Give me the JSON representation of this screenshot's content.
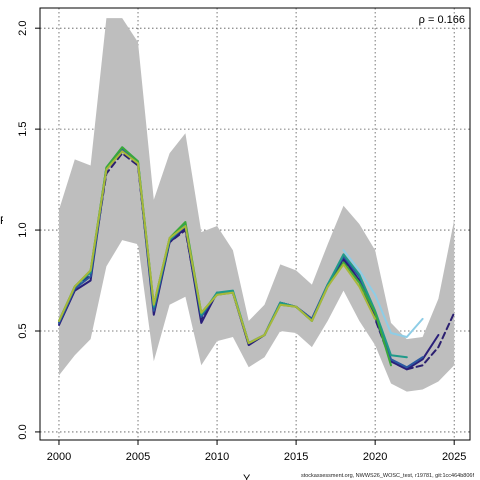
{
  "annotation": "ρ = 0.166",
  "footer": "stockassessment.org, NWWS26_WOSC_test, r19781, git:1cc464b806f",
  "xlabel": "Y",
  "ylabel": "F",
  "chart_data": {
    "type": "line",
    "xlim": [
      1998.8,
      2026.0
    ],
    "ylim": [
      -0.04,
      2.1
    ],
    "x_ticks": [
      2000,
      2005,
      2010,
      2015,
      2020,
      2025
    ],
    "y_ticks": [
      0.0,
      0.5,
      1.0,
      1.5,
      2.0
    ],
    "x_tick_labels": [
      "2000",
      "2005",
      "2010",
      "2015",
      "2020",
      "2025"
    ],
    "y_tick_labels": [
      "0.0",
      "0.5",
      "1.0",
      "1.5",
      "2.0"
    ],
    "grid": true,
    "band_color": "#bebebe",
    "confidence_band": {
      "x": [
        2000,
        2001,
        2002,
        2003,
        2004,
        2005,
        2006,
        2007,
        2008,
        2009,
        2010,
        2011,
        2012,
        2013,
        2014,
        2015,
        2016,
        2017,
        2018,
        2019,
        2020,
        2021,
        2022,
        2023,
        2024,
        2025
      ],
      "lower": [
        0.28,
        0.38,
        0.46,
        0.82,
        0.95,
        0.93,
        0.35,
        0.63,
        0.67,
        0.33,
        0.45,
        0.47,
        0.32,
        0.37,
        0.5,
        0.49,
        0.42,
        0.55,
        0.7,
        0.55,
        0.43,
        0.24,
        0.2,
        0.21,
        0.25,
        0.33
      ],
      "upper": [
        1.1,
        1.35,
        1.32,
        2.05,
        2.05,
        1.93,
        1.15,
        1.38,
        1.48,
        0.99,
        1.02,
        0.9,
        0.55,
        0.63,
        0.83,
        0.8,
        0.73,
        0.93,
        1.12,
        1.03,
        0.9,
        0.54,
        0.46,
        0.47,
        0.66,
        1.05
      ]
    },
    "series": [
      {
        "color": "#2b1f70",
        "dashed": true,
        "x": [
          2000,
          2001,
          2002,
          2003,
          2004,
          2005,
          2006,
          2007,
          2008,
          2009,
          2010,
          2011,
          2012,
          2013,
          2014,
          2015,
          2016,
          2017,
          2018,
          2019,
          2020,
          2021,
          2022,
          2023,
          2024,
          2025
        ],
        "y": [
          0.54,
          0.72,
          0.78,
          1.28,
          1.38,
          1.32,
          0.6,
          0.94,
          1.0,
          0.56,
          0.69,
          0.69,
          0.44,
          0.48,
          0.64,
          0.62,
          0.56,
          0.72,
          0.85,
          0.74,
          0.56,
          0.35,
          0.31,
          0.33,
          0.42,
          0.59
        ]
      },
      {
        "color": "#2a1f7a",
        "x": [
          2000,
          2001,
          2002,
          2003,
          2004,
          2005,
          2006,
          2007,
          2008,
          2009,
          2010,
          2011,
          2012,
          2013,
          2014,
          2015,
          2016,
          2017,
          2018,
          2019,
          2020,
          2021,
          2022,
          2023,
          2024
        ],
        "y": [
          0.53,
          0.7,
          0.75,
          1.3,
          1.4,
          1.33,
          0.58,
          0.94,
          1.01,
          0.54,
          0.69,
          0.69,
          0.43,
          0.48,
          0.64,
          0.62,
          0.56,
          0.73,
          0.86,
          0.75,
          0.57,
          0.35,
          0.31,
          0.36,
          0.48
        ]
      },
      {
        "color": "#2a58a0",
        "x": [
          2000,
          2001,
          2002,
          2003,
          2004,
          2005,
          2006,
          2007,
          2008,
          2009,
          2010,
          2011,
          2012,
          2013,
          2014,
          2015,
          2016,
          2017,
          2018,
          2019,
          2020,
          2021,
          2022,
          2023
        ],
        "y": [
          0.54,
          0.71,
          0.77,
          1.3,
          1.4,
          1.33,
          0.6,
          0.95,
          1.02,
          0.57,
          0.69,
          0.69,
          0.44,
          0.48,
          0.64,
          0.62,
          0.56,
          0.73,
          0.87,
          0.77,
          0.59,
          0.36,
          0.32,
          0.37
        ]
      },
      {
        "color": "#1f9a8a",
        "x": [
          2000,
          2001,
          2002,
          2003,
          2004,
          2005,
          2006,
          2007,
          2008,
          2009,
          2010,
          2011,
          2012,
          2013,
          2014,
          2015,
          2016,
          2017,
          2018,
          2019,
          2020,
          2021,
          2022
        ],
        "y": [
          0.55,
          0.72,
          0.79,
          1.31,
          1.41,
          1.34,
          0.62,
          0.95,
          1.03,
          0.58,
          0.69,
          0.7,
          0.44,
          0.48,
          0.64,
          0.62,
          0.55,
          0.73,
          0.88,
          0.78,
          0.6,
          0.38,
          0.37
        ]
      },
      {
        "color": "#3aa83a",
        "x": [
          2000,
          2001,
          2002,
          2003,
          2004,
          2005,
          2006,
          2007,
          2008,
          2009,
          2010,
          2011,
          2012,
          2013,
          2014,
          2015,
          2016,
          2017,
          2018,
          2019,
          2020,
          2021
        ],
        "y": [
          0.55,
          0.72,
          0.8,
          1.31,
          1.41,
          1.34,
          0.63,
          0.96,
          1.04,
          0.59,
          0.68,
          0.69,
          0.44,
          0.48,
          0.63,
          0.62,
          0.55,
          0.72,
          0.84,
          0.74,
          0.59,
          0.33
        ]
      },
      {
        "color": "#a8b83a",
        "x": [
          2000,
          2001,
          2002,
          2003,
          2004,
          2005,
          2006,
          2007,
          2008,
          2009,
          2010,
          2011,
          2012,
          2013,
          2014,
          2015,
          2016,
          2017,
          2018,
          2019,
          2020
        ],
        "y": [
          0.55,
          0.72,
          0.8,
          1.3,
          1.39,
          1.33,
          0.63,
          0.96,
          1.02,
          0.59,
          0.68,
          0.69,
          0.44,
          0.48,
          0.63,
          0.62,
          0.55,
          0.72,
          0.83,
          0.72,
          0.56
        ]
      },
      {
        "color": "#8ecde6",
        "x": [
          2018,
          2019,
          2020,
          2021,
          2022,
          2023
        ],
        "y": [
          0.9,
          0.8,
          0.68,
          0.49,
          0.47,
          0.56
        ]
      }
    ]
  }
}
